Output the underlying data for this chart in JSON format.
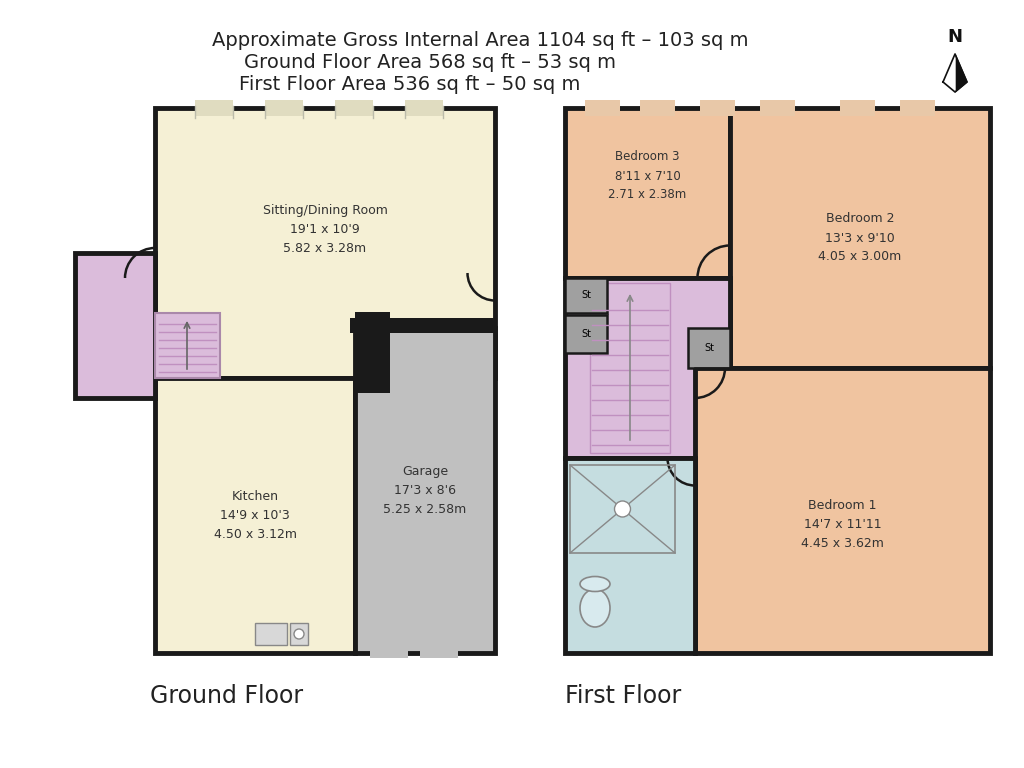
{
  "title_lines": [
    "Approximate Gross Internal Area 1104 sq ft – 103 sq m",
    "Ground Floor Area 568 sq ft – 53 sq m",
    "First Floor Area 536 sq ft – 50 sq m"
  ],
  "background_color": "#ffffff",
  "wall_color": "#1a1a1a",
  "colors": {
    "sitting_dining": "#f5f0d5",
    "kitchen": "#f5f0d5",
    "garage": "#c0c0c0",
    "porch": "#dbbcdb",
    "bedroom1": "#f0c4a0",
    "bedroom2": "#f0c4a0",
    "bedroom3": "#f0c4a0",
    "landing": "#dbbcdb",
    "bathroom": "#c5dde0",
    "storage": "#a8a8a8",
    "wall_black": "#1a1a1a"
  },
  "ground_floor_label": "Ground Floor",
  "first_floor_label": "First Floor",
  "rooms": {
    "sitting_dining": {
      "label": "Sitting/Dining Room\n19'1 x 10'9\n5.82 x 3.28m"
    },
    "kitchen": {
      "label": "Kitchen\n14'9 x 10'3\n4.50 x 3.12m"
    },
    "garage": {
      "label": "Garage\n17'3 x 8'6\n5.25 x 2.58m"
    },
    "bedroom1": {
      "label": "Bedroom 1\n14'7 x 11'11\n4.45 x 3.62m"
    },
    "bedroom2": {
      "label": "Bedroom 2\n13'3 x 9'10\n4.05 x 3.00m"
    },
    "bedroom3": {
      "label": "Bedroom 3\n8'11 x 7'10\n2.71 x 2.38m"
    }
  }
}
